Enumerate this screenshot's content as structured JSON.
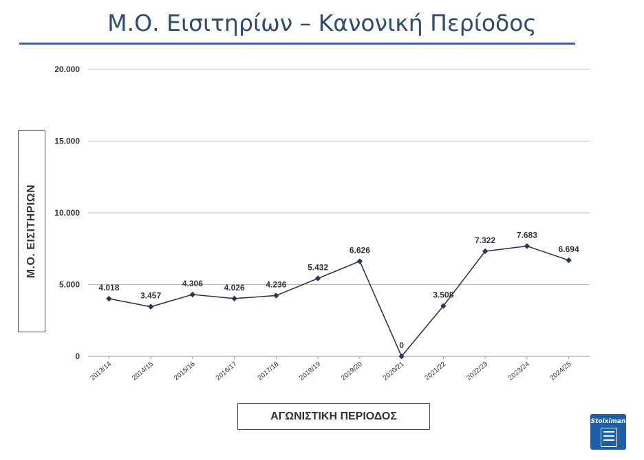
{
  "page": {
    "title": "Μ.Ο. Εισιτηρίων – Κανονική Περίοδος"
  },
  "brand": {
    "logo_text": "Stoiximan",
    "accent": "#3f5fa0",
    "logo_color": "#1d5fa8"
  },
  "chart_data": {
    "type": "line",
    "ylabel": "Μ.Ο. ΕΙΣΙΤΗΡΙΩΝ",
    "xlabel": "ΑΓΩΝΙΣΤΙΚΗ ΠΕΡΙΟΔΟΣ",
    "ylim": [
      0,
      20000
    ],
    "yticks": [
      0,
      5000,
      10000,
      15000,
      20000
    ],
    "ytick_labels": [
      "0",
      "5.000",
      "10.000",
      "15.000",
      "20.000"
    ],
    "grid": true,
    "line_color": "#2a3550",
    "categories": [
      "2013/14",
      "2014/15",
      "2015/16",
      "2016/17",
      "2017/18",
      "2018/19",
      "2019/20",
      "2020/21",
      "2021/22",
      "2022/23",
      "2023/24",
      "2024/25"
    ],
    "values": [
      4018,
      3457,
      4306,
      4026,
      4236,
      5432,
      6626,
      0,
      3508,
      7322,
      7683,
      6694
    ],
    "data_labels": [
      "4.018",
      "3.457",
      "4.306",
      "4.026",
      "4.236",
      "5.432",
      "6.626",
      "0",
      "3.508",
      "7.322",
      "7.683",
      "6.694"
    ]
  }
}
